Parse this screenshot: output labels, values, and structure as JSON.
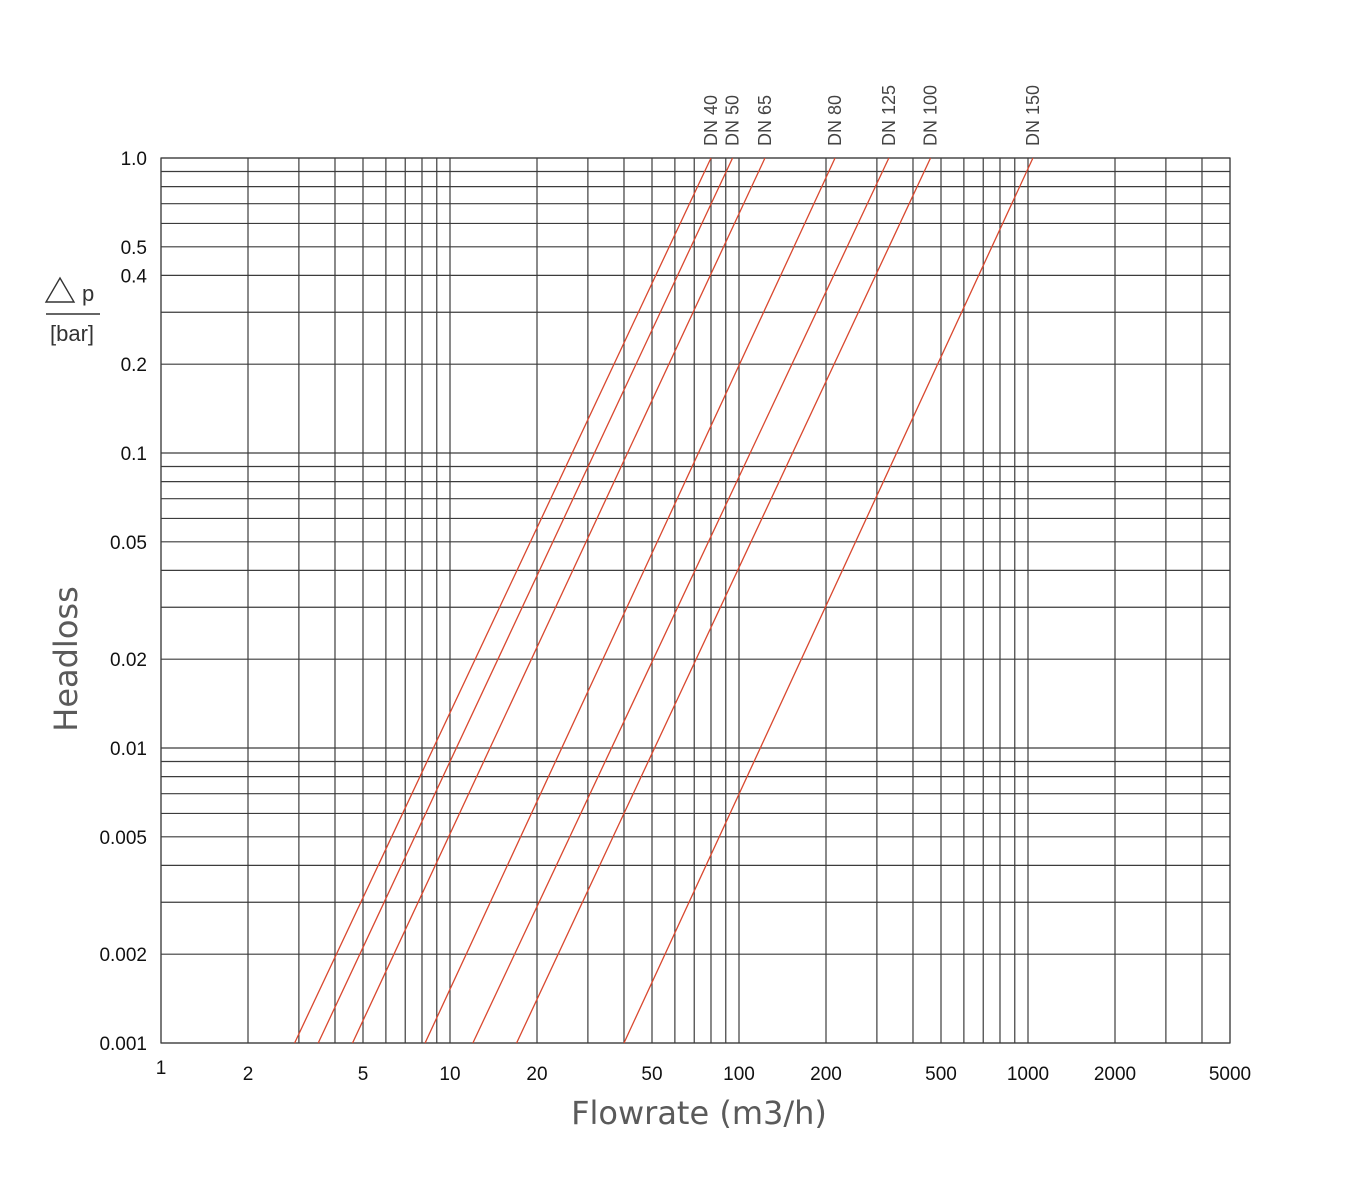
{
  "chart_data": {
    "type": "line",
    "title": "",
    "xlabel": "Flowrate (m3/h)",
    "ylabel": "Headloss",
    "xscale": "log",
    "yscale": "log",
    "xlim": [
      1,
      5000
    ],
    "ylim": [
      0.001,
      1.0
    ],
    "x_ticks": [
      {
        "value": 1,
        "label": "1"
      },
      {
        "value": 2,
        "label": "2"
      },
      {
        "value": 5,
        "label": "5"
      },
      {
        "value": 10,
        "label": "10"
      },
      {
        "value": 20,
        "label": "20"
      },
      {
        "value": 50,
        "label": "50"
      },
      {
        "value": 100,
        "label": "100"
      },
      {
        "value": 200,
        "label": "200"
      },
      {
        "value": 500,
        "label": "500"
      },
      {
        "value": 1000,
        "label": "1000"
      },
      {
        "value": 2000,
        "label": "2000"
      },
      {
        "value": 5000,
        "label": "5000"
      }
    ],
    "y_ticks": [
      {
        "value": 1.0,
        "label": "1.0"
      },
      {
        "value": 0.5,
        "label": "0.5"
      },
      {
        "value": 0.4,
        "label": "0.4"
      },
      {
        "value": 0.2,
        "label": "0.2"
      },
      {
        "value": 0.1,
        "label": "0.1"
      },
      {
        "value": 0.05,
        "label": "0.05"
      },
      {
        "value": 0.02,
        "label": "0.02"
      },
      {
        "value": 0.01,
        "label": "0.01"
      },
      {
        "value": 0.005,
        "label": "0.005"
      },
      {
        "value": 0.002,
        "label": "0.002"
      },
      {
        "value": 0.001,
        "label": "0.001"
      }
    ],
    "x_gridlines": [
      1,
      2,
      3,
      4,
      5,
      6,
      7,
      8,
      9,
      10,
      20,
      30,
      40,
      50,
      60,
      70,
      80,
      90,
      100,
      200,
      300,
      400,
      500,
      600,
      700,
      800,
      900,
      1000,
      2000,
      3000,
      4000,
      5000
    ],
    "y_gridlines": [
      0.001,
      0.002,
      0.003,
      0.004,
      0.005,
      0.006,
      0.007,
      0.008,
      0.009,
      0.01,
      0.02,
      0.03,
      0.04,
      0.05,
      0.06,
      0.07,
      0.08,
      0.09,
      0.1,
      0.2,
      0.3,
      0.4,
      0.5,
      0.6,
      0.7,
      0.8,
      0.9,
      1.0
    ],
    "unit_symbol": "p",
    "unit_label": "[bar]",
    "series": [
      {
        "name": "DN 40",
        "points": [
          [
            2.9,
            0.001
          ],
          [
            80,
            1.0
          ]
        ]
      },
      {
        "name": "DN 50",
        "points": [
          [
            3.5,
            0.001
          ],
          [
            95,
            1.0
          ]
        ]
      },
      {
        "name": "DN 65",
        "points": [
          [
            4.6,
            0.001
          ],
          [
            123,
            1.0
          ]
        ]
      },
      {
        "name": "DN 80",
        "points": [
          [
            8.2,
            0.001
          ],
          [
            215,
            1.0
          ]
        ]
      },
      {
        "name": "DN 125",
        "points": [
          [
            12,
            0.001
          ],
          [
            330,
            1.0
          ]
        ]
      },
      {
        "name": "DN 100",
        "points": [
          [
            17,
            0.001
          ],
          [
            460,
            1.0
          ]
        ]
      },
      {
        "name": "DN 150",
        "points": [
          [
            40,
            0.001
          ],
          [
            1040,
            1.0
          ]
        ]
      }
    ],
    "series_color": "#d9482f",
    "grid": true,
    "legend": "none"
  }
}
